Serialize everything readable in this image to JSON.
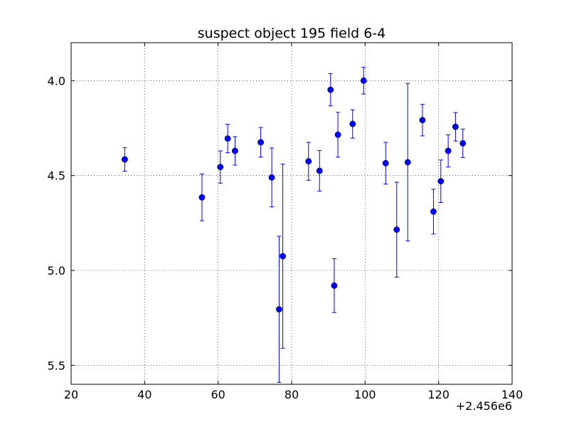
{
  "chart_data": {
    "type": "scatter",
    "title": "suspect object 195 field 6-4",
    "xlabel": "",
    "ylabel": "",
    "x_offset_label": "+2.456e6",
    "xlim": [
      20,
      140
    ],
    "ylim": [
      5.6,
      3.8
    ],
    "y_inverted": true,
    "grid": true,
    "x_ticks": [
      20,
      40,
      60,
      80,
      100,
      120,
      140
    ],
    "x_tick_labels": [
      "20",
      "40",
      "60",
      "80",
      "100",
      "120",
      "140"
    ],
    "y_ticks": [
      4.0,
      4.5,
      5.0,
      5.5
    ],
    "y_tick_labels": [
      "4.0",
      "4.5",
      "5.0",
      "5.5"
    ],
    "series": [
      {
        "color": "#0000ff",
        "marker": "circle",
        "errorbars": true,
        "points": [
          {
            "x": 34.6,
            "y": 4.415,
            "err": 0.062
          },
          {
            "x": 55.6,
            "y": 4.615,
            "err": 0.123
          },
          {
            "x": 60.6,
            "y": 4.455,
            "err": 0.085
          },
          {
            "x": 62.6,
            "y": 4.305,
            "err": 0.075
          },
          {
            "x": 64.6,
            "y": 4.37,
            "err": 0.075
          },
          {
            "x": 71.6,
            "y": 4.325,
            "err": 0.078
          },
          {
            "x": 74.6,
            "y": 4.51,
            "err": 0.155
          },
          {
            "x": 76.6,
            "y": 5.205,
            "err": 0.385
          },
          {
            "x": 77.6,
            "y": 4.925,
            "err": 0.485
          },
          {
            "x": 84.6,
            "y": 4.425,
            "err": 0.1
          },
          {
            "x": 87.6,
            "y": 4.475,
            "err": 0.107
          },
          {
            "x": 90.6,
            "y": 4.048,
            "err": 0.085
          },
          {
            "x": 91.6,
            "y": 5.08,
            "err": 0.142
          },
          {
            "x": 92.6,
            "y": 4.285,
            "err": 0.118
          },
          {
            "x": 96.6,
            "y": 4.228,
            "err": 0.075
          },
          {
            "x": 99.6,
            "y": 4.0,
            "err": 0.07
          },
          {
            "x": 105.6,
            "y": 4.435,
            "err": 0.11
          },
          {
            "x": 108.6,
            "y": 4.785,
            "err": 0.25
          },
          {
            "x": 111.6,
            "y": 4.43,
            "err": 0.415
          },
          {
            "x": 115.6,
            "y": 4.208,
            "err": 0.083
          },
          {
            "x": 118.6,
            "y": 4.69,
            "err": 0.118
          },
          {
            "x": 120.6,
            "y": 4.53,
            "err": 0.112
          },
          {
            "x": 122.6,
            "y": 4.37,
            "err": 0.085
          },
          {
            "x": 124.6,
            "y": 4.243,
            "err": 0.075
          },
          {
            "x": 126.6,
            "y": 4.33,
            "err": 0.075
          }
        ]
      }
    ]
  }
}
